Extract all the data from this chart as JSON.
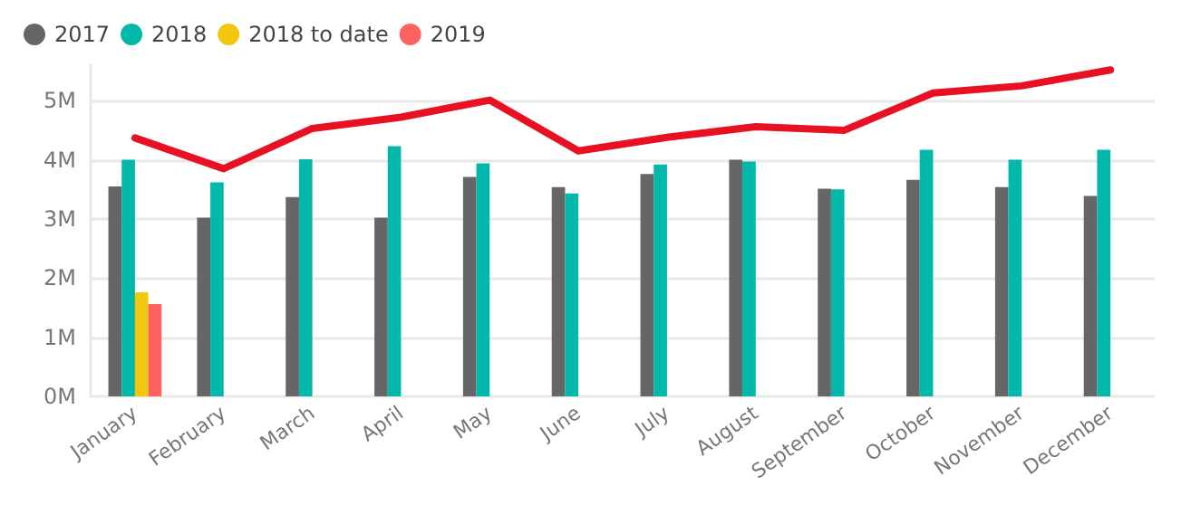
{
  "chart_data": {
    "type": "bar",
    "categories": [
      "January",
      "February",
      "March",
      "April",
      "May",
      "June",
      "July",
      "August",
      "September",
      "October",
      "November",
      "December"
    ],
    "series": [
      {
        "name": "2017",
        "color": "#666666",
        "values": [
          3.55,
          3.02,
          3.37,
          3.02,
          3.71,
          3.54,
          3.76,
          4.0,
          3.51,
          3.66,
          3.54,
          3.39
        ]
      },
      {
        "name": "2018",
        "color": "#01b8aa",
        "values": [
          4.0,
          3.62,
          4.01,
          4.23,
          3.94,
          3.43,
          3.92,
          3.97,
          3.5,
          4.17,
          4.0,
          4.17
        ]
      },
      {
        "name": "2018 to date",
        "color": "#f2c80f",
        "values": [
          1.76,
          null,
          null,
          null,
          null,
          null,
          null,
          null,
          null,
          null,
          null,
          null
        ]
      },
      {
        "name": "2019",
        "color": "#fd625e",
        "values": [
          1.56,
          null,
          null,
          null,
          null,
          null,
          null,
          null,
          null,
          null,
          null,
          null
        ]
      },
      {
        "type": "line",
        "color": "#e81123",
        "values": [
          4.37,
          3.85,
          4.53,
          4.72,
          5.01,
          4.15,
          4.38,
          4.56,
          4.5,
          5.13,
          5.25,
          5.52
        ]
      }
    ],
    "yticks": [
      {
        "value": 0,
        "label": "0M"
      },
      {
        "value": 1,
        "label": "1M"
      },
      {
        "value": 2,
        "label": "2M"
      },
      {
        "value": 3,
        "label": "3M"
      },
      {
        "value": 4,
        "label": "4M"
      },
      {
        "value": 5,
        "label": "5M"
      }
    ],
    "ylim": [
      0,
      5.6
    ],
    "grid": "y",
    "legend": "top left",
    "marker": "none",
    "line_style": "solid"
  }
}
